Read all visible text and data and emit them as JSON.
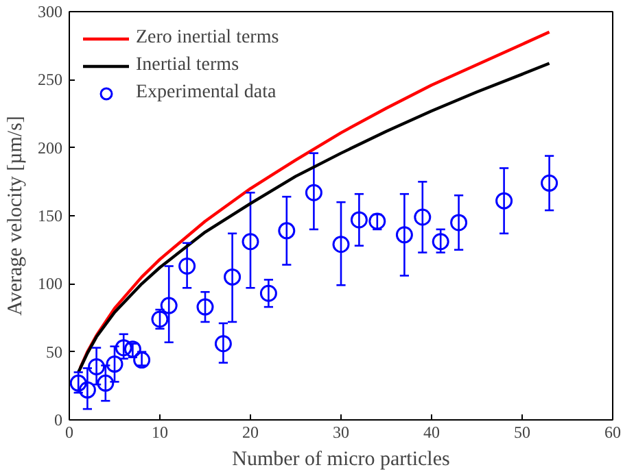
{
  "chart_data": {
    "type": "line",
    "xlabel": "Number of micro particles",
    "ylabel": "Average velocity [µm/s]",
    "xlim": [
      0,
      60
    ],
    "ylim": [
      0,
      300
    ],
    "xticks": [
      0,
      10,
      20,
      30,
      40,
      50,
      60
    ],
    "yticks": [
      0,
      50,
      100,
      150,
      200,
      250,
      300
    ],
    "grid": false,
    "legend": "top left",
    "series": [
      {
        "name": "Zero inertial terms",
        "color": "#ff0000",
        "line_style": "solid",
        "x": [
          1.2,
          2,
          3,
          5,
          8,
          10,
          15,
          20,
          25,
          30,
          35,
          40,
          45,
          50,
          53
        ],
        "values": [
          38,
          50,
          62,
          82,
          105,
          118,
          146,
          170,
          191,
          211,
          229,
          246,
          261,
          276,
          285
        ]
      },
      {
        "name": "Inertial terms",
        "color": "#000000",
        "line_style": "solid",
        "x": [
          1,
          2,
          3,
          5,
          8,
          10,
          15,
          20,
          25,
          30,
          35,
          40,
          45,
          50,
          53
        ],
        "values": [
          35,
          49,
          61,
          79,
          100,
          112,
          138,
          159,
          179,
          196,
          212,
          227,
          241,
          254,
          262
        ]
      },
      {
        "name": "Experimental data",
        "type": "scatter",
        "color": "#0000ff",
        "marker": "circle",
        "x": [
          1,
          2,
          3,
          4,
          5,
          6,
          7,
          8,
          10,
          11,
          13,
          15,
          17,
          18,
          20,
          22,
          24,
          27,
          30,
          32,
          34,
          37,
          39,
          41,
          43,
          48,
          53
        ],
        "values": [
          27,
          22,
          39,
          27,
          41,
          53,
          52,
          44,
          74,
          84,
          113,
          83,
          56,
          105,
          131,
          93,
          139,
          167,
          129,
          147,
          146,
          136,
          149,
          131,
          145,
          161,
          174
        ],
        "errors": [
          [
            20,
            35
          ],
          [
            8,
            38
          ],
          [
            26,
            53
          ],
          [
            14,
            40
          ],
          [
            28,
            54
          ],
          [
            45,
            63
          ],
          [
            46,
            56
          ],
          [
            40,
            50
          ],
          [
            67,
            81
          ],
          [
            57,
            113
          ],
          [
            97,
            130
          ],
          [
            72,
            94
          ],
          [
            42,
            71
          ],
          [
            72,
            137
          ],
          [
            97,
            167
          ],
          [
            83,
            103
          ],
          [
            114,
            164
          ],
          [
            140,
            196
          ],
          [
            99,
            160
          ],
          [
            128,
            166
          ],
          [
            140,
            151
          ],
          [
            106,
            166
          ],
          [
            123,
            175
          ],
          [
            123,
            140
          ],
          [
            125,
            165
          ],
          [
            137,
            185
          ],
          [
            154,
            194
          ]
        ]
      }
    ]
  }
}
